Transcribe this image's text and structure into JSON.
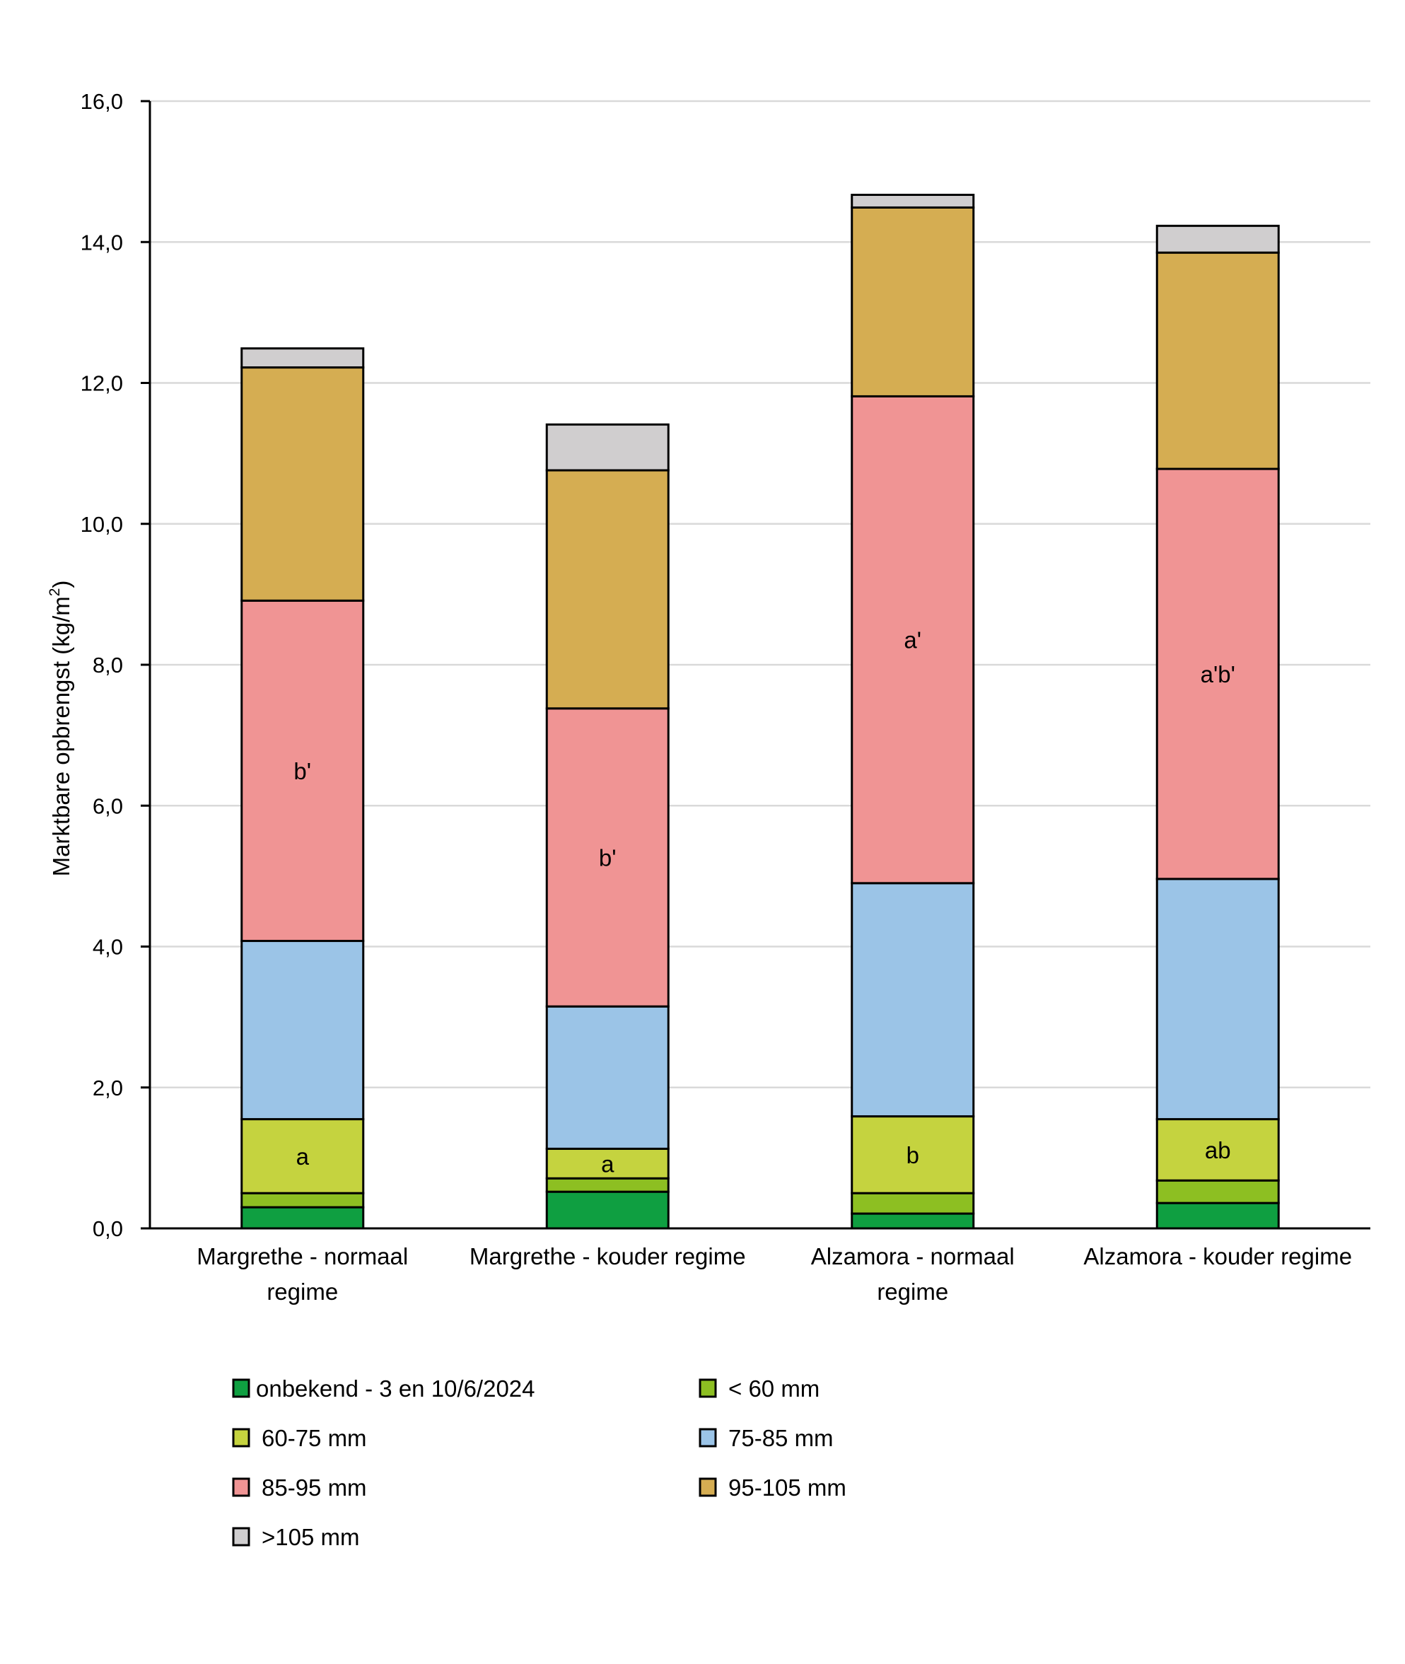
{
  "chart_data": {
    "type": "bar",
    "stacked": true,
    "title": "",
    "xlabel": "",
    "ylabel": "Marktbare opbrengst (kg/m²)",
    "ylabel_parts": {
      "main": "Marktbare opbrengst (kg/m",
      "superscript": "2",
      "end": ")"
    },
    "ylim": [
      0,
      16
    ],
    "yticks": [
      0,
      2,
      4,
      6,
      8,
      10,
      12,
      14,
      16
    ],
    "ytick_labels": [
      "0,0",
      "2,0",
      "4,0",
      "6,0",
      "8,0",
      "10,0",
      "12,0",
      "14,0",
      "16,0"
    ],
    "grid": true,
    "legend_position": "bottom",
    "categories": [
      "Margrethe - normaal regime",
      "Margrethe - kouder regime",
      "Alzamora - normaal regime",
      "Alzamora - kouder regime"
    ],
    "category_label_lines": [
      [
        "Margrethe - normaal",
        "regime"
      ],
      [
        "Margrethe - kouder regime"
      ],
      [
        "Alzamora - normaal",
        "regime"
      ],
      [
        "Alzamora - kouder regime"
      ]
    ],
    "series": [
      {
        "name": "onbekend - 3 en 10/6/2024",
        "color": "#0F9F41",
        "values": [
          0.3,
          0.52,
          0.21,
          0.36
        ]
      },
      {
        "name": "< 60 mm",
        "color": "#8DBF22",
        "values": [
          0.2,
          0.19,
          0.29,
          0.32
        ]
      },
      {
        "name": "60-75 mm",
        "color": "#C5D33F",
        "values": [
          1.05,
          0.42,
          1.09,
          0.87
        ]
      },
      {
        "name": "75-85 mm",
        "color": "#9BC4E7",
        "values": [
          2.53,
          2.02,
          3.31,
          3.41
        ]
      },
      {
        "name": "85-95 mm",
        "color": "#F09494",
        "values": [
          4.83,
          4.23,
          6.91,
          5.82
        ]
      },
      {
        "name": "95-105  mm",
        "color": "#D5AD52",
        "values": [
          3.31,
          3.38,
          2.68,
          3.07
        ]
      },
      {
        "name": ">105 mm",
        "color": "#D0CECF",
        "values": [
          0.27,
          0.65,
          0.18,
          0.38
        ]
      }
    ],
    "annotations": [
      {
        "category": 0,
        "series": 2,
        "text": "a"
      },
      {
        "category": 1,
        "series": 2,
        "text": "a"
      },
      {
        "category": 2,
        "series": 2,
        "text": "b"
      },
      {
        "category": 3,
        "series": 2,
        "text": "ab"
      },
      {
        "category": 0,
        "series": 4,
        "text": "b'"
      },
      {
        "category": 1,
        "series": 4,
        "text": "b'"
      },
      {
        "category": 2,
        "series": 4,
        "text": "a'"
      },
      {
        "category": 3,
        "series": 4,
        "text": "a'b'"
      }
    ],
    "legend_columns": 2
  }
}
